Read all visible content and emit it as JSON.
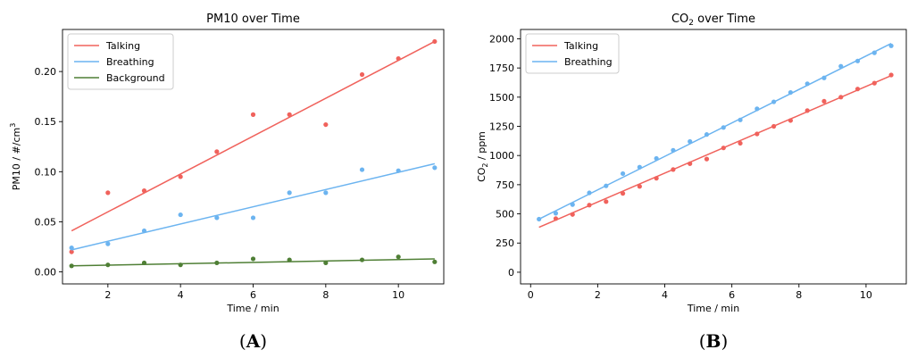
{
  "chart_data": [
    {
      "type": "scatter",
      "title": "PM10 over Time",
      "xlabel": "Time / min",
      "ylabel_main": "PM10 / #/cm",
      "ylabel_sup": "3",
      "xlim": [
        0.75,
        11.25
      ],
      "ylim": [
        -0.012,
        0.242
      ],
      "xticks": [
        2,
        4,
        6,
        8,
        10
      ],
      "yticks": [
        0.0,
        0.05,
        0.1,
        0.15,
        0.2
      ],
      "ytick_labels": [
        "0.00",
        "0.05",
        "0.10",
        "0.15",
        "0.20"
      ],
      "grid": false,
      "legend_position": "top-left",
      "panel_letter": "A",
      "series": [
        {
          "name": "Talking",
          "color": "#f0625c",
          "x": [
            1,
            2,
            3,
            4,
            5,
            6,
            7,
            8,
            9,
            10,
            11
          ],
          "y": [
            0.02,
            0.079,
            0.081,
            0.095,
            0.12,
            0.157,
            0.157,
            0.147,
            0.197,
            0.213,
            0.23
          ],
          "fit": [
            0.041,
            0.23
          ]
        },
        {
          "name": "Breathing",
          "color": "#6cb4f0",
          "x": [
            1,
            2,
            3,
            4,
            5,
            6,
            7,
            8,
            9,
            10,
            11
          ],
          "y": [
            0.024,
            0.028,
            0.041,
            0.057,
            0.054,
            0.054,
            0.079,
            0.079,
            0.102,
            0.101,
            0.104
          ],
          "fit": [
            0.022,
            0.108
          ]
        },
        {
          "name": "Background",
          "color": "#4f7f35",
          "x": [
            1,
            2,
            3,
            4,
            5,
            6,
            7,
            8,
            9,
            10,
            11
          ],
          "y": [
            0.006,
            0.007,
            0.009,
            0.007,
            0.009,
            0.013,
            0.012,
            0.009,
            0.012,
            0.015,
            0.01
          ],
          "fit": [
            0.006,
            0.013
          ]
        }
      ]
    },
    {
      "type": "scatter",
      "title_main": "CO",
      "title_sub": "2",
      "title_rest": " over Time",
      "xlabel": "Time / min",
      "ylabel_main": "CO",
      "ylabel_sub": "2",
      "ylabel_rest": " / ppm",
      "xlim": [
        -0.3,
        11.2
      ],
      "ylim": [
        -100,
        2080
      ],
      "xticks": [
        0,
        2,
        4,
        6,
        8,
        10
      ],
      "yticks": [
        0,
        250,
        500,
        750,
        1000,
        1250,
        1500,
        1750,
        2000
      ],
      "ytick_labels": [
        "0",
        "250",
        "500",
        "750",
        "1000",
        "1250",
        "1500",
        "1750",
        "2000"
      ],
      "grid": false,
      "legend_position": "top-left",
      "panel_letter": "B",
      "series": [
        {
          "name": "Talking",
          "color": "#f0625c",
          "x": [
            0.75,
            1.25,
            1.75,
            2.25,
            2.75,
            3.25,
            3.75,
            4.25,
            4.75,
            5.25,
            5.75,
            6.25,
            6.75,
            7.25,
            7.75,
            8.25,
            8.75,
            9.25,
            9.75,
            10.25,
            10.75
          ],
          "y": [
            460,
            495,
            575,
            605,
            675,
            735,
            805,
            880,
            930,
            970,
            1065,
            1105,
            1185,
            1250,
            1300,
            1385,
            1465,
            1500,
            1570,
            1620,
            1690
          ],
          "fit": [
            [
              0.25,
              385
            ],
            [
              10.75,
              1685
            ]
          ]
        },
        {
          "name": "Breathing",
          "color": "#6cb4f0",
          "x": [
            0.25,
            0.75,
            1.25,
            1.75,
            2.25,
            2.75,
            3.25,
            3.75,
            4.25,
            4.75,
            5.25,
            5.75,
            6.25,
            6.75,
            7.25,
            7.75,
            8.25,
            8.75,
            9.25,
            9.75,
            10.25,
            10.75
          ],
          "y": [
            455,
            505,
            580,
            680,
            740,
            845,
            900,
            975,
            1045,
            1120,
            1180,
            1240,
            1305,
            1400,
            1460,
            1540,
            1615,
            1665,
            1765,
            1810,
            1880,
            1940
          ],
          "fit": [
            [
              0.25,
              455
            ],
            [
              10.75,
              1960
            ]
          ]
        }
      ]
    }
  ]
}
